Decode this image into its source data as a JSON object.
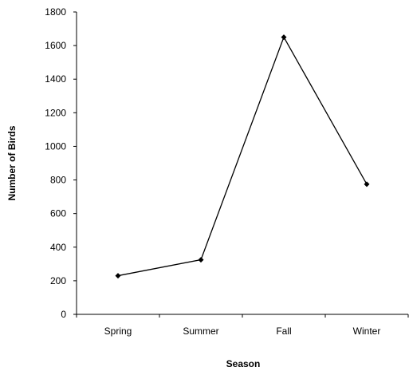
{
  "chart_data": {
    "type": "line",
    "title": "",
    "xlabel": "Season",
    "ylabel": "Number of Birds",
    "categories": [
      "Spring",
      "Summer",
      "Fall",
      "Winter"
    ],
    "series": [
      {
        "values": [
          230,
          325,
          1650,
          775
        ]
      }
    ],
    "ylim": [
      0,
      1800
    ],
    "yticks": [
      "0",
      "200",
      "400",
      "600",
      "800",
      "1000",
      "1200",
      "1400",
      "1600",
      "1800"
    ],
    "grid": false,
    "legend": "none",
    "line_color": "#000000",
    "marker": "diamond"
  }
}
